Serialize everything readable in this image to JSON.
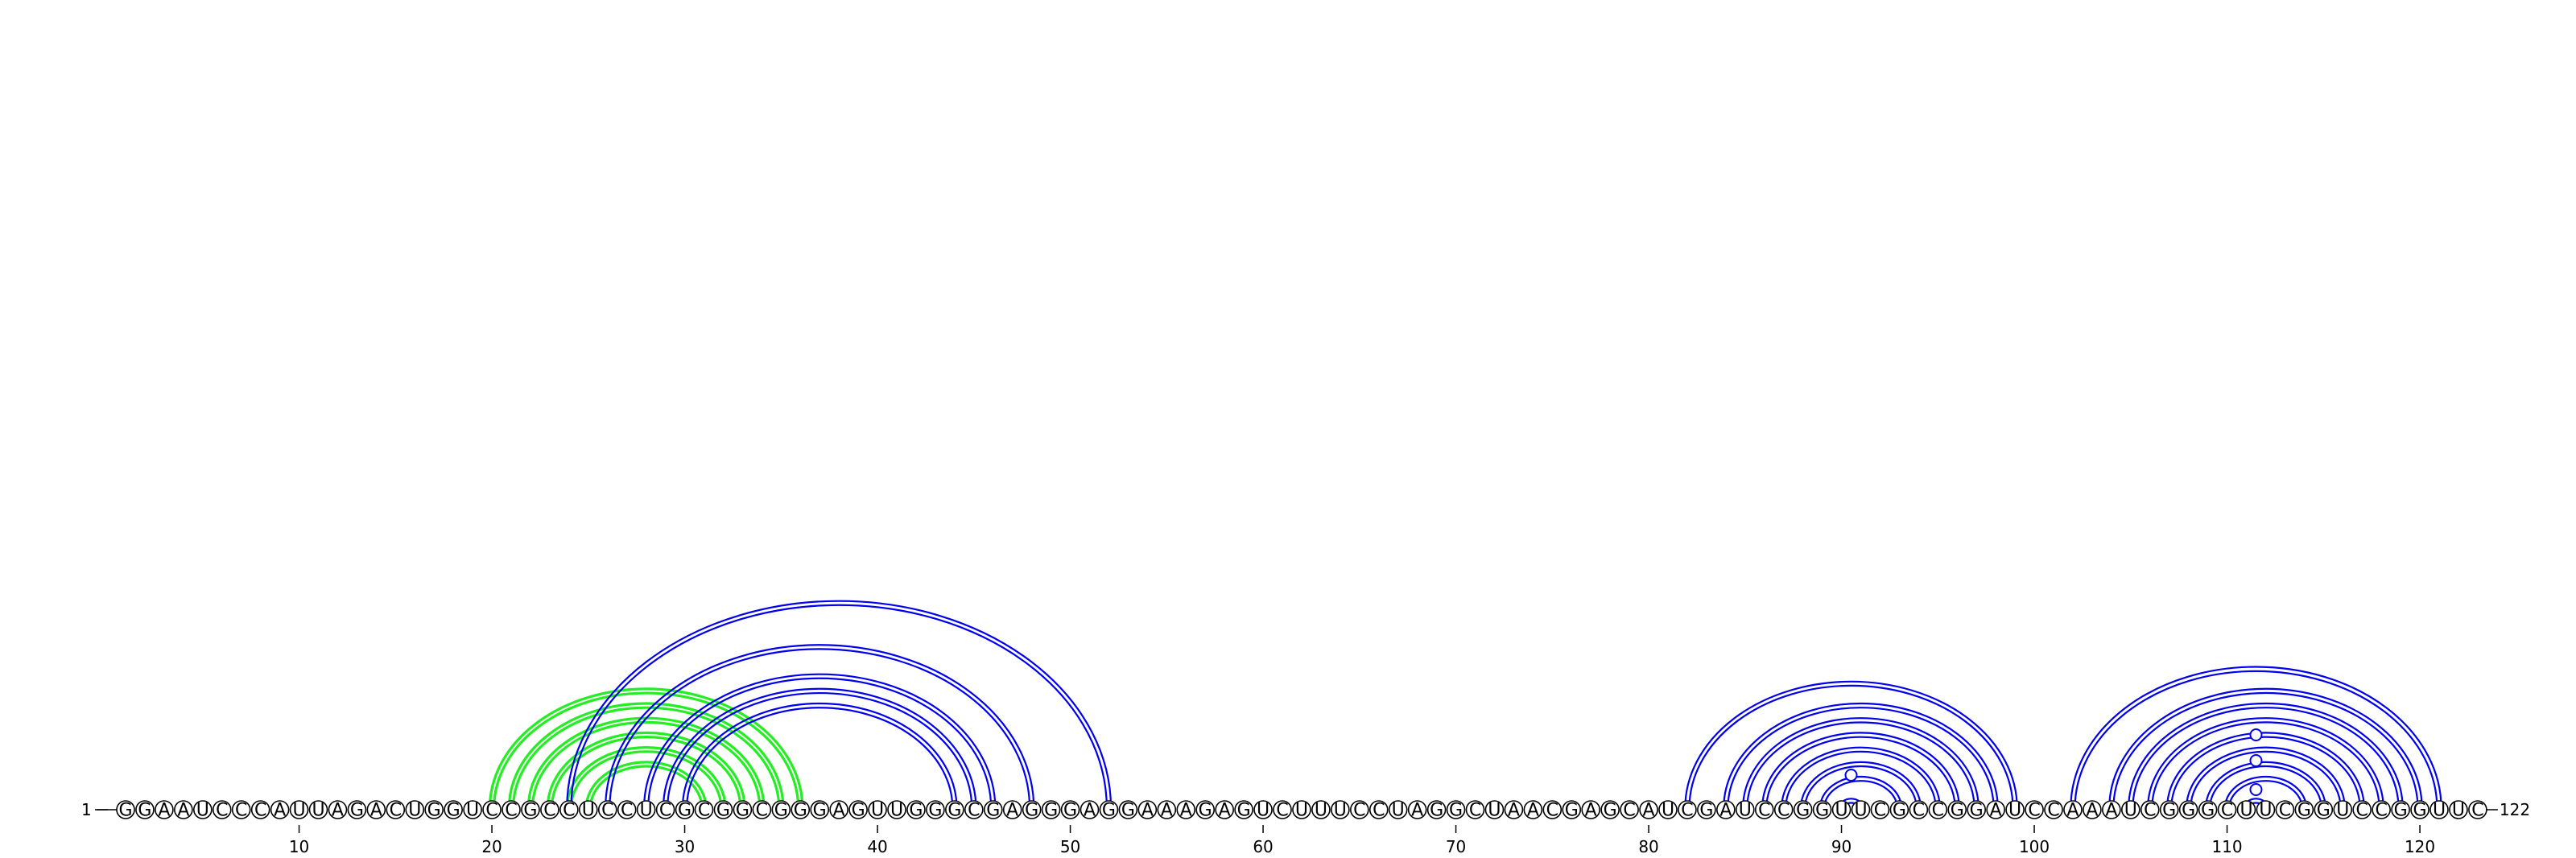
{
  "sequence": "GGAAUCCCAUUAGACUGGUCCGCCUCCUCGCGGCGGGAGUUGGGCGAGGGAGGAAAGAGUCUUUCCUAGGCUAACGAGCAUCGAUCCGGUUCGCCGGAUCCAAAUCGGGCUUCGGUCCGGUUC",
  "start_label": "1",
  "end_label": "122",
  "ticks": [
    10,
    20,
    30,
    40,
    50,
    60,
    70,
    80,
    90,
    100,
    110,
    120
  ],
  "colors": {
    "structure_a": "#0000ee",
    "structure_b": "#22ee22"
  },
  "blue_pairs": [
    [
      24,
      52
    ],
    [
      26,
      48
    ],
    [
      28,
      46
    ],
    [
      29,
      45
    ],
    [
      30,
      44
    ],
    [
      82,
      99
    ],
    [
      84,
      98
    ],
    [
      85,
      97
    ],
    [
      86,
      96
    ],
    [
      87,
      95
    ],
    [
      88,
      94
    ],
    [
      89,
      93
    ],
    [
      90,
      91
    ],
    [
      102,
      121
    ],
    [
      104,
      120
    ],
    [
      105,
      119
    ],
    [
      106,
      118
    ],
    [
      107,
      117
    ],
    [
      108,
      116
    ],
    [
      109,
      115
    ],
    [
      110,
      114
    ],
    [
      111,
      112
    ]
  ],
  "green_pairs": [
    [
      20,
      36
    ],
    [
      21,
      35
    ],
    [
      22,
      34
    ],
    [
      23,
      33
    ],
    [
      24,
      32
    ],
    [
      25,
      31
    ]
  ],
  "blue_loop_markers": [
    90,
    111,
    111,
    111
  ]
}
